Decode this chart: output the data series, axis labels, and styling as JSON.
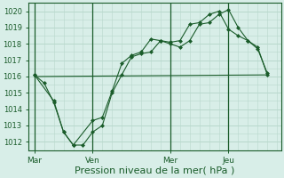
{
  "background_color": "#d8eee8",
  "grid_color": "#b8d8cc",
  "line_color": "#1a5c2a",
  "xlabel": "Pression niveau de la mer( hPa )",
  "xlabel_fontsize": 8,
  "yticks": [
    1012,
    1013,
    1014,
    1015,
    1016,
    1017,
    1018,
    1019,
    1020
  ],
  "ylim": [
    1011.5,
    1020.5
  ],
  "day_labels": [
    "Mar",
    "Ven",
    "Mer",
    "Jeu"
  ],
  "day_positions": [
    0,
    3,
    7,
    10
  ],
  "xlim": [
    -0.3,
    12.7
  ],
  "series1_x": [
    0,
    0.5,
    1,
    1.5,
    2,
    2.5,
    3,
    3.5,
    4,
    4.5,
    5,
    5.5,
    6,
    6.5,
    7,
    7.5,
    8,
    8.5,
    9,
    9.5,
    10,
    10.5,
    11,
    11.5,
    12
  ],
  "series1_y": [
    1016.1,
    1015.6,
    1014.4,
    1012.6,
    1011.8,
    1011.8,
    1012.6,
    1013.0,
    1015.0,
    1016.1,
    1017.2,
    1017.4,
    1017.5,
    1018.2,
    1018.0,
    1017.8,
    1018.2,
    1019.2,
    1019.3,
    1019.8,
    1020.1,
    1019.0,
    1018.2,
    1017.8,
    1016.1
  ],
  "series2_x": [
    0,
    12
  ],
  "series2_y": [
    1016.0,
    1016.1
  ],
  "series3_x": [
    0,
    1,
    1.5,
    2,
    3,
    3.5,
    4,
    4.5,
    5,
    5.5,
    6,
    6.5,
    7,
    7.5,
    8,
    8.5,
    9,
    9.5,
    10,
    10.5,
    11,
    11.5,
    12
  ],
  "series3_y": [
    1016.1,
    1014.5,
    1012.6,
    1011.8,
    1013.3,
    1013.5,
    1015.1,
    1016.8,
    1017.3,
    1017.5,
    1018.3,
    1018.2,
    1018.1,
    1018.2,
    1019.2,
    1019.3,
    1019.8,
    1020.0,
    1018.9,
    1018.5,
    1018.2,
    1017.7,
    1016.2
  ]
}
